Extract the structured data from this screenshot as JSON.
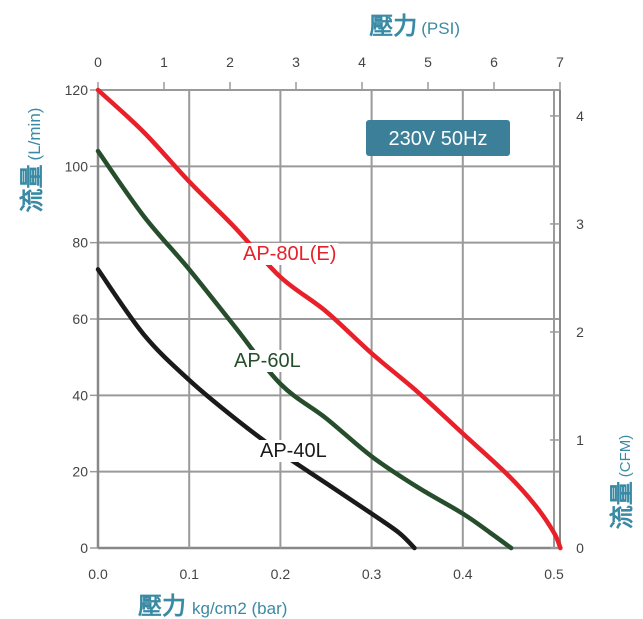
{
  "chart_data": {
    "type": "line",
    "badge": "230V 50Hz",
    "bottom_axis": {
      "title_main": "壓力",
      "title_unit": "kg/cm2 (bar)",
      "range": [
        0,
        0.5
      ],
      "ticks": [
        "0.0",
        "0.1",
        "0.2",
        "0.3",
        "0.4",
        "0.5"
      ]
    },
    "top_axis": {
      "title_main": "壓力",
      "title_unit": "(PSI)",
      "range": [
        0,
        7
      ],
      "ticks": [
        "0",
        "1",
        "2",
        "3",
        "4",
        "5",
        "6",
        "7"
      ]
    },
    "left_axis": {
      "title_main": "流量",
      "title_unit": "(L/min)",
      "range": [
        0,
        120
      ],
      "ticks": [
        "0",
        "20",
        "40",
        "60",
        "80",
        "100",
        "120"
      ]
    },
    "right_axis": {
      "title_main": "流量",
      "title_unit": "(CFM)",
      "range": [
        0,
        4.24
      ],
      "ticks": [
        "0",
        "1",
        "2",
        "3",
        "4"
      ]
    },
    "grid": true,
    "series": [
      {
        "name": "AP-80L(E)",
        "color": "#e8202a",
        "x": [
          0.0,
          0.05,
          0.1,
          0.15,
          0.2,
          0.25,
          0.3,
          0.35,
          0.4,
          0.45,
          0.48,
          0.5,
          0.507
        ],
        "y": [
          120,
          109,
          96,
          84,
          71,
          62,
          51,
          41,
          30,
          19,
          11,
          4,
          0
        ]
      },
      {
        "name": "AP-60L",
        "color": "#264d2c",
        "x": [
          0.0,
          0.05,
          0.1,
          0.15,
          0.2,
          0.25,
          0.3,
          0.35,
          0.4,
          0.43,
          0.453
        ],
        "y": [
          104,
          87,
          73,
          58,
          43,
          34,
          24,
          16,
          9,
          4,
          0
        ]
      },
      {
        "name": "AP-40L",
        "color": "#1a1a1a",
        "x": [
          0.0,
          0.05,
          0.1,
          0.15,
          0.2,
          0.25,
          0.3,
          0.33,
          0.347
        ],
        "y": [
          73,
          56,
          44,
          34,
          25,
          17,
          9,
          4,
          0
        ]
      }
    ]
  }
}
